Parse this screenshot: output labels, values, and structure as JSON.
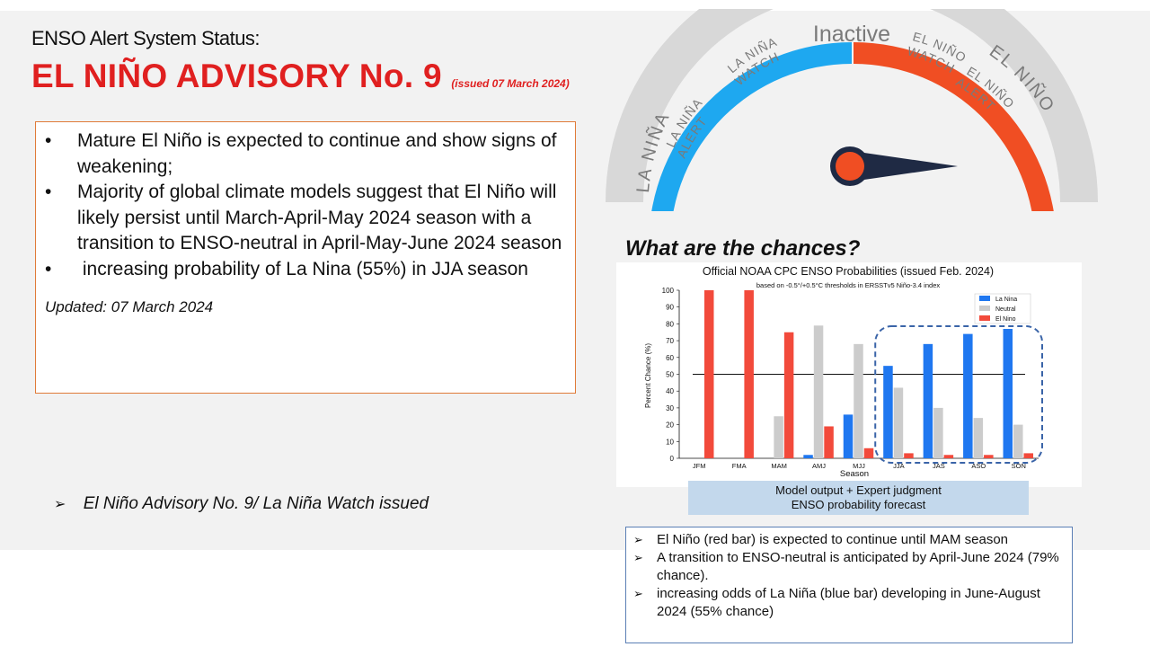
{
  "header": {
    "status_heading": "ENSO Alert System Status:",
    "advisory_title": "EL NIÑO ADVISORY No. 9",
    "issued": "(issued 07 March 2024)",
    "accent_color": "#e02020"
  },
  "summary": {
    "bullet_glyph": "•",
    "items": [
      "Mature El Niño is expected to continue and show signs of weakening;",
      "Majority of global climate models suggest that El Niño will likely persist until March-April-May 2024 season with a transition to ENSO-neutral in April-May-June 2024 season",
      " increasing probability of La Nina (55%) in JJA season"
    ],
    "updated": "Updated: 07 March 2024"
  },
  "watch_note": {
    "arrow": "➢",
    "text": "El Niño Advisory No. 9/ La Niña Watch issued"
  },
  "gauge": {
    "labels": {
      "la_nina": "LA NIÑA",
      "la_nina_alert_1": "LA NIÑA",
      "la_nina_alert_2": "ALERT",
      "la_nina_watch_1": "LA NIÑA",
      "la_nina_watch_2": "WATCH",
      "inactive": "Inactive",
      "el_nino_watch_1": "EL NIÑO",
      "el_nino_watch_2": "WATCH",
      "el_nino_alert_1": "EL NIÑO",
      "el_nino_alert_2": "ALERT",
      "el_nino": "EL NIÑO"
    },
    "colors": {
      "la_nina": "#1ea8f0",
      "el_nino": "#f04e23",
      "track": "#d4d4d4",
      "needle": "#1f2a44",
      "hub": "#f04e23"
    }
  },
  "chances_heading": "What are the chances?",
  "chart_data": {
    "type": "bar",
    "title": "Official NOAA CPC ENSO Probabilities (issued Feb. 2024)",
    "subtitle": "based on -0.5°/+0.5°C thresholds in ERSSTv5 Niño-3.4 index",
    "xlabel": "Season",
    "ylabel": "Percent Chance (%)",
    "ylim": [
      0,
      100
    ],
    "yticks": [
      0,
      10,
      20,
      30,
      40,
      50,
      60,
      70,
      80,
      90,
      100
    ],
    "categories": [
      "JFM",
      "FMA",
      "MAM",
      "AMJ",
      "MJJ",
      "JJA",
      "JAS",
      "ASO",
      "SON"
    ],
    "series": [
      {
        "name": "La Nina",
        "color": "#1f77f0",
        "values": [
          0,
          0,
          0,
          2,
          26,
          55,
          68,
          74,
          77
        ]
      },
      {
        "name": "Neutral",
        "color": "#cccccc",
        "values": [
          0,
          0,
          25,
          79,
          68,
          42,
          30,
          24,
          20
        ]
      },
      {
        "name": "El Nino",
        "color": "#f24a3b",
        "values": [
          100,
          100,
          75,
          19,
          6,
          3,
          2,
          2,
          3
        ]
      }
    ],
    "reference_line": 50,
    "legend_position": "top-right",
    "highlight_categories": [
      "JJA",
      "JAS",
      "ASO",
      "SON"
    ],
    "grid": false
  },
  "caption": {
    "line1": "Model output + Expert judgment",
    "line2": "ENSO probability forecast"
  },
  "notes": {
    "arrow": "➢",
    "items": [
      "El Niño (red bar) is expected to continue until MAM season",
      "A transition to ENSO-neutral is anticipated by April-June 2024 (79% chance).",
      "increasing odds of La Niña (blue bar) developing in June-August 2024 (55% chance)"
    ]
  }
}
